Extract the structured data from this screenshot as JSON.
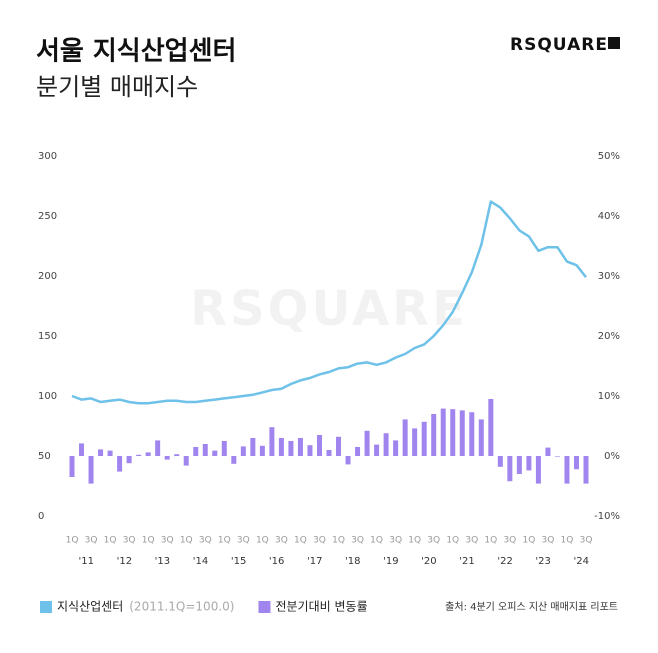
{
  "chart_data": {
    "type": "combo",
    "title": "서울 지식산업센터",
    "subtitle": "분기별 매매지수",
    "brand": "RSQUARE",
    "source": "출처: 4분기 오피스 지산 매매지표 리포트",
    "legend_note": "(2011.1Q=100.0)",
    "categories": [
      "1Q",
      null,
      "3Q",
      null,
      "1Q",
      null,
      "3Q",
      null,
      "1Q",
      null,
      "3Q",
      null,
      "1Q",
      null,
      "3Q",
      null,
      "1Q",
      null,
      "3Q",
      null,
      "1Q",
      null,
      "3Q",
      null,
      "1Q",
      null,
      "3Q",
      null,
      "1Q",
      null,
      "3Q",
      null,
      "1Q",
      null,
      "3Q",
      null,
      "1Q",
      null,
      "3Q",
      null,
      "1Q",
      null,
      "3Q",
      null,
      "1Q",
      null,
      "3Q",
      null,
      "1Q",
      null,
      "3Q",
      null,
      "1Q",
      null,
      "3Q"
    ],
    "year_labels": [
      "'11",
      "'12",
      "'13",
      "'14",
      "'15",
      "'16",
      "'17",
      "'18",
      "'19",
      "'20",
      "'21",
      "'22",
      "'23",
      "'24"
    ],
    "series": [
      {
        "name": "지식산업센터",
        "type": "line",
        "color": "#6ec1e8",
        "values": [
          100,
          97,
          98,
          95,
          96,
          97,
          95,
          94,
          94,
          95,
          96,
          96,
          95,
          95,
          96,
          97,
          98,
          99,
          100,
          101,
          103,
          105,
          106,
          110,
          113,
          115,
          118,
          120,
          123,
          124,
          127,
          128,
          126,
          128,
          132,
          135,
          140,
          143,
          150,
          159,
          170,
          186,
          203,
          226,
          262,
          257,
          248,
          238,
          233,
          221,
          224,
          224,
          212,
          209,
          199
        ]
      },
      {
        "name": "전분기대비 변동률",
        "type": "bar",
        "axis": "y2",
        "color": "#a185ef",
        "values": [
          -3.5,
          2.1,
          -4.6,
          1.1,
          0.9,
          -2.6,
          -1.2,
          0.2,
          0.6,
          2.6,
          -0.6,
          0.3,
          -1.6,
          1.5,
          2.0,
          0.9,
          2.5,
          -1.3,
          1.6,
          3.0,
          1.7,
          4.8,
          3.0,
          2.5,
          3.0,
          1.8,
          3.5,
          1.0,
          3.2,
          -1.4,
          1.5,
          4.2,
          1.9,
          3.8,
          2.6,
          6.1,
          4.6,
          5.7,
          7.0,
          7.9,
          7.8,
          7.6,
          7.3,
          6.1,
          9.5,
          -1.8,
          -4.2,
          -3.0,
          -2.4,
          -4.6,
          1.4,
          -0.1,
          -4.6,
          -2.2,
          -4.6
        ]
      }
    ],
    "ylim": [
      0,
      300
    ],
    "yticks": [
      0,
      50,
      100,
      150,
      200,
      250,
      300
    ],
    "y2lim": [
      -10,
      50
    ],
    "y2ticks": [
      {
        "value": -10,
        "label": "-10%"
      },
      {
        "value": 0,
        "label": "0%"
      },
      {
        "value": 10,
        "label": "10%"
      },
      {
        "value": 20,
        "label": "20%"
      },
      {
        "value": 30,
        "label": "30%"
      },
      {
        "value": 40,
        "label": "40%"
      },
      {
        "value": 50,
        "label": "50%"
      }
    ],
    "grid": false
  }
}
